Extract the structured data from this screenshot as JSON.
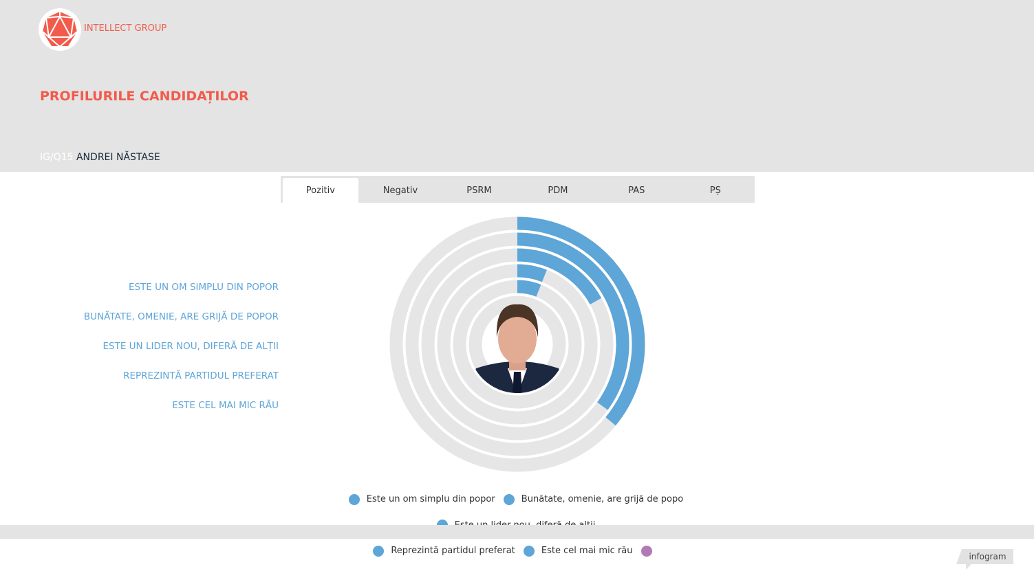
{
  "brand": {
    "name": "INTELLECT GROUP",
    "color": "#f25b4b"
  },
  "header": {
    "title": "PROFILURILE CANDIDAȚILOR",
    "code": "IG/Q15",
    "candidate": "ANDREI NĂSTASE"
  },
  "tabs": [
    {
      "label": "Pozitiv",
      "active": true
    },
    {
      "label": "Negativ"
    },
    {
      "label": "PSRM"
    },
    {
      "label": "PDM"
    },
    {
      "label": "PAS"
    },
    {
      "label": "PȘ"
    }
  ],
  "side_labels": [
    "ESTE UN OM SIMPLU DIN POPOR",
    "BUNĂTATE, OMENIE, ARE GRIJĂ DE POPOR",
    "ESTE UN LIDER NOU, DIFERĂ DE ALȚII",
    "REPREZINTĂ PARTIDUL PREFERAT",
    "ESTE CEL MAI MIC RĂU"
  ],
  "chart_data": {
    "type": "radial-bar",
    "max": 100,
    "track_color": "#e6e6e6",
    "series": [
      {
        "name": "Este un om simplu din popor",
        "value": 36,
        "color": "#5ea5d8"
      },
      {
        "name": "Bunătate, omenie, are grijă de popo",
        "value": 35,
        "color": "#5ea5d8"
      },
      {
        "name": "Este un lider nou, diferă de alții",
        "value": 17,
        "color": "#5ea5d8"
      },
      {
        "name": "Reprezintă partidul preferat",
        "value": 6,
        "color": "#5ea5d8"
      },
      {
        "name": "Este cel mai mic rău",
        "value": 6,
        "color": "#5ea5d8"
      },
      {
        "name": "",
        "value": 0,
        "color": "#b07ab5"
      }
    ]
  },
  "footer": {
    "badge": "infogram"
  }
}
